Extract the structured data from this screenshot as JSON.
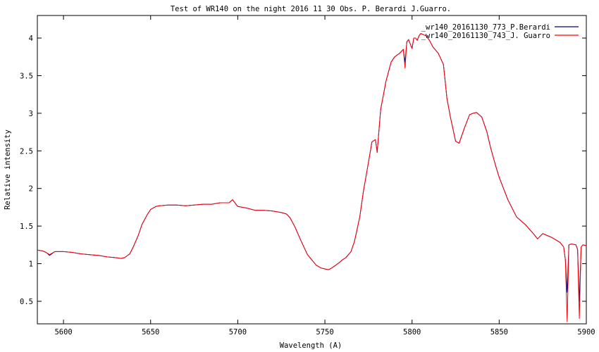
{
  "chart_data": {
    "type": "line",
    "title": "Test of WR140 on the night 2016 11 30  Obs.  P. Berardi J.Guarro.",
    "xlabel": "Wavelength (A)",
    "ylabel": "Relative intensity",
    "xlim": [
      5585,
      5900
    ],
    "ylim": [
      0.2,
      4.3
    ],
    "xticks": [
      5600,
      5650,
      5700,
      5750,
      5800,
      5850,
      5900
    ],
    "yticks": [
      0.5,
      1,
      1.5,
      2,
      2.5,
      3,
      3.5,
      4
    ],
    "xtick_labels": [
      "5600",
      "5650",
      "5700",
      "5750",
      "5800",
      "5850",
      "5900"
    ],
    "ytick_labels": [
      "0.5",
      "1",
      "1.5",
      "2",
      "2.5",
      "3",
      "3.5",
      "4"
    ],
    "grid": false,
    "legend_position": "top-right",
    "series": [
      {
        "name": "_wr140_20161130_773_P.Berardi",
        "color": "#00008b",
        "x": [
          5585,
          5588,
          5590,
          5592,
          5595,
          5600,
          5605,
          5610,
          5615,
          5620,
          5625,
          5630,
          5633,
          5635,
          5638,
          5640,
          5643,
          5645,
          5648,
          5650,
          5653,
          5655,
          5660,
          5665,
          5670,
          5675,
          5680,
          5685,
          5690,
          5695,
          5697,
          5700,
          5705,
          5710,
          5715,
          5720,
          5725,
          5728,
          5730,
          5733,
          5736,
          5740,
          5745,
          5748,
          5750,
          5752,
          5753,
          5755,
          5758,
          5760,
          5762,
          5765,
          5767,
          5770,
          5772,
          5775,
          5777,
          5779,
          5780,
          5782,
          5785,
          5788,
          5790,
          5793,
          5795,
          5796,
          5797,
          5798,
          5800,
          5801,
          5802,
          5803,
          5804,
          5805,
          5806,
          5808,
          5810,
          5812,
          5815,
          5818,
          5820,
          5822,
          5825,
          5827,
          5830,
          5833,
          5835,
          5837,
          5840,
          5843,
          5845,
          5848,
          5850,
          5855,
          5860,
          5865,
          5870,
          5872,
          5875,
          5878,
          5880,
          5883,
          5885,
          5887,
          5888,
          5889,
          5890,
          5891,
          5892,
          5894,
          5895,
          5896,
          5897,
          5898,
          5900
        ],
        "y": [
          1.18,
          1.17,
          1.15,
          1.11,
          1.16,
          1.16,
          1.15,
          1.13,
          1.12,
          1.11,
          1.09,
          1.08,
          1.07,
          1.08,
          1.13,
          1.22,
          1.38,
          1.52,
          1.65,
          1.72,
          1.76,
          1.77,
          1.78,
          1.78,
          1.77,
          1.78,
          1.79,
          1.79,
          1.81,
          1.81,
          1.85,
          1.76,
          1.74,
          1.71,
          1.71,
          1.7,
          1.68,
          1.66,
          1.61,
          1.48,
          1.32,
          1.12,
          0.98,
          0.94,
          0.93,
          0.92,
          0.93,
          0.96,
          1.01,
          1.05,
          1.08,
          1.16,
          1.3,
          1.62,
          1.95,
          2.35,
          2.62,
          2.65,
          2.48,
          3.05,
          3.42,
          3.68,
          3.75,
          3.8,
          3.85,
          3.68,
          3.95,
          3.98,
          3.86,
          4.0,
          4.0,
          3.97,
          4.03,
          4.06,
          4.05,
          4.03,
          3.97,
          3.88,
          3.8,
          3.65,
          3.2,
          2.95,
          2.63,
          2.6,
          2.8,
          2.98,
          3.0,
          3.01,
          2.95,
          2.75,
          2.55,
          2.3,
          2.15,
          1.85,
          1.62,
          1.52,
          1.39,
          1.33,
          1.4,
          1.37,
          1.35,
          1.31,
          1.28,
          1.22,
          1.05,
          0.62,
          1.25,
          1.26,
          1.26,
          1.25,
          1.19,
          0.5,
          1.22,
          1.25,
          1.24
        ]
      },
      {
        "name": "_wr140_20161130_743_J. Guarro",
        "color": "#ff0000",
        "x": [
          5585,
          5588,
          5590,
          5592,
          5595,
          5600,
          5605,
          5610,
          5615,
          5620,
          5625,
          5630,
          5633,
          5635,
          5638,
          5640,
          5643,
          5645,
          5648,
          5650,
          5653,
          5655,
          5660,
          5665,
          5670,
          5675,
          5680,
          5685,
          5690,
          5695,
          5697,
          5700,
          5705,
          5710,
          5715,
          5720,
          5725,
          5728,
          5730,
          5733,
          5736,
          5740,
          5745,
          5748,
          5750,
          5752,
          5753,
          5755,
          5758,
          5760,
          5762,
          5765,
          5767,
          5770,
          5772,
          5775,
          5777,
          5779,
          5780,
          5782,
          5785,
          5788,
          5790,
          5793,
          5795,
          5796,
          5797,
          5798,
          5800,
          5801,
          5802,
          5803,
          5804,
          5805,
          5806,
          5808,
          5810,
          5812,
          5815,
          5818,
          5820,
          5822,
          5825,
          5827,
          5830,
          5833,
          5835,
          5837,
          5840,
          5843,
          5845,
          5848,
          5850,
          5855,
          5860,
          5865,
          5870,
          5872,
          5875,
          5878,
          5880,
          5883,
          5885,
          5887,
          5888,
          5889,
          5890,
          5891,
          5892,
          5894,
          5895,
          5896,
          5897,
          5898,
          5900
        ],
        "y": [
          1.18,
          1.17,
          1.15,
          1.12,
          1.16,
          1.16,
          1.15,
          1.13,
          1.12,
          1.11,
          1.09,
          1.08,
          1.07,
          1.08,
          1.13,
          1.22,
          1.38,
          1.52,
          1.65,
          1.72,
          1.76,
          1.77,
          1.78,
          1.78,
          1.77,
          1.78,
          1.79,
          1.79,
          1.81,
          1.81,
          1.85,
          1.76,
          1.74,
          1.71,
          1.71,
          1.7,
          1.68,
          1.66,
          1.61,
          1.48,
          1.32,
          1.12,
          0.98,
          0.94,
          0.93,
          0.92,
          0.93,
          0.96,
          1.01,
          1.05,
          1.08,
          1.16,
          1.3,
          1.62,
          1.95,
          2.35,
          2.62,
          2.65,
          2.48,
          3.05,
          3.42,
          3.68,
          3.75,
          3.8,
          3.85,
          3.6,
          3.95,
          3.98,
          3.86,
          4.0,
          4.0,
          3.97,
          4.03,
          4.06,
          4.05,
          4.03,
          3.97,
          3.88,
          3.8,
          3.65,
          3.2,
          2.95,
          2.63,
          2.6,
          2.8,
          2.98,
          3.0,
          3.01,
          2.95,
          2.75,
          2.55,
          2.3,
          2.15,
          1.85,
          1.62,
          1.52,
          1.39,
          1.33,
          1.4,
          1.37,
          1.35,
          1.31,
          1.28,
          1.22,
          1.05,
          0.23,
          1.25,
          1.26,
          1.26,
          1.25,
          1.19,
          0.27,
          1.22,
          1.25,
          1.24
        ]
      }
    ]
  }
}
